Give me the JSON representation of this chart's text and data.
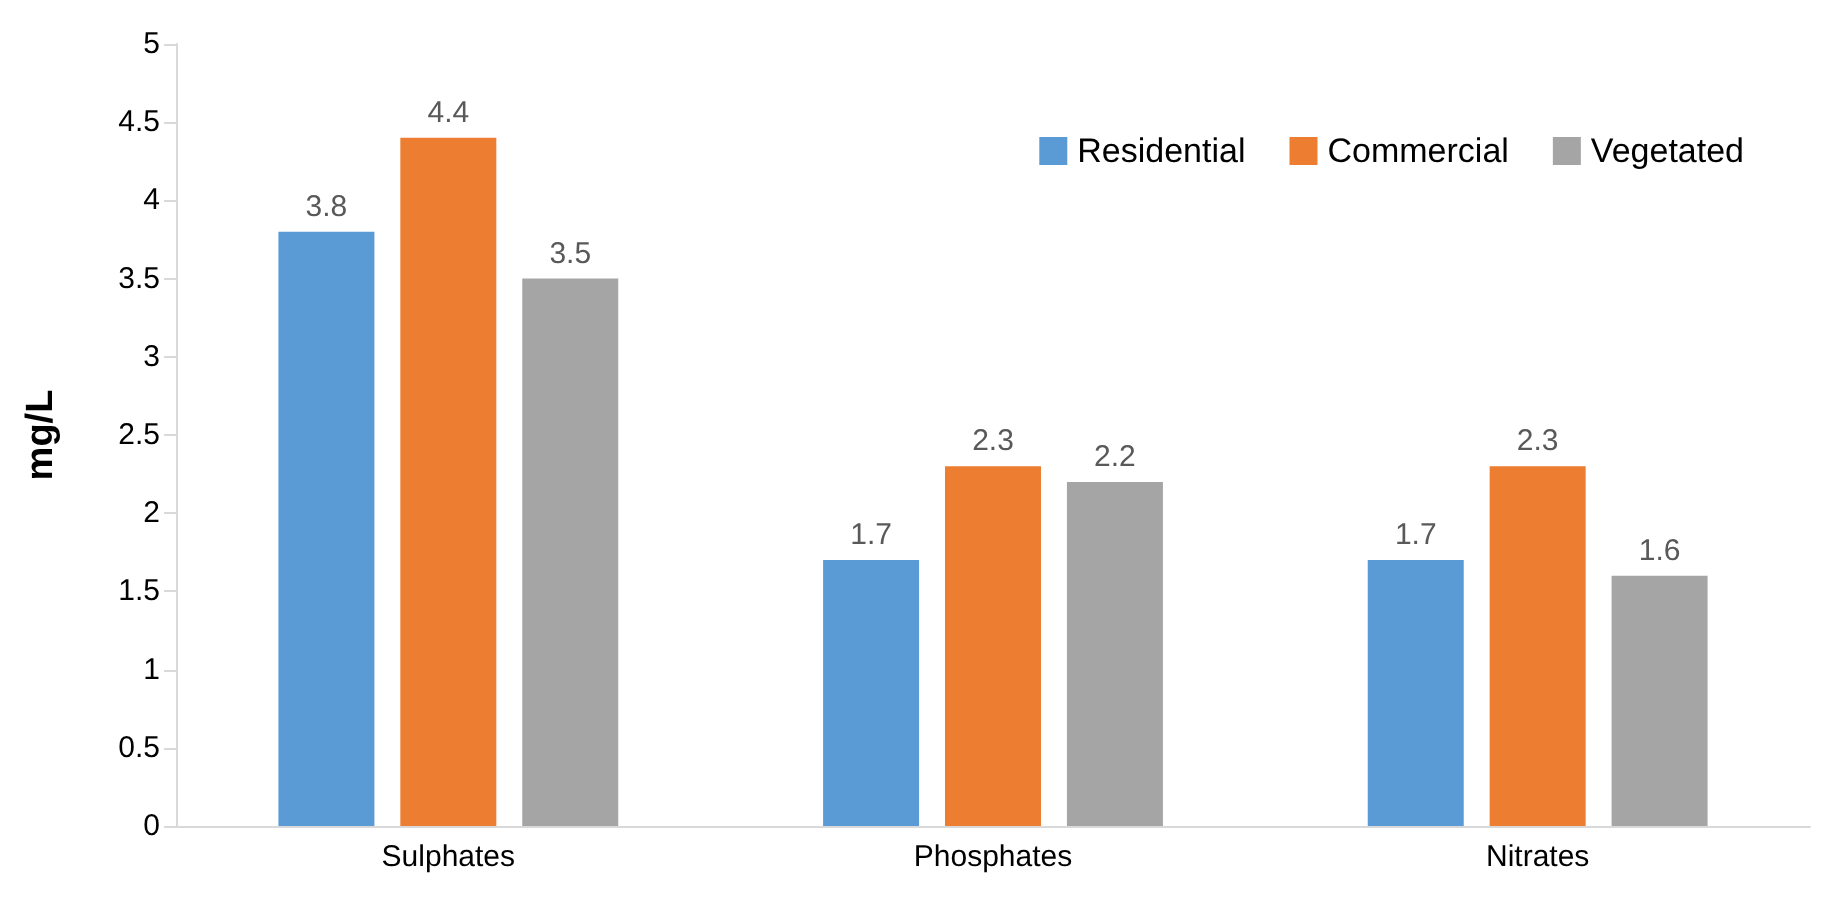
{
  "chart_data": {
    "type": "bar",
    "ylabel": "mg/L",
    "categories": [
      "Sulphates",
      "Phosphates",
      "Nitrates"
    ],
    "series": [
      {
        "name": "Residential",
        "color": "#5b9bd5",
        "values": [
          3.8,
          1.7,
          1.7
        ]
      },
      {
        "name": "Commercial",
        "color": "#ed7d31",
        "values": [
          4.4,
          2.3,
          2.3
        ]
      },
      {
        "name": "Vegetated",
        "color": "#a5a5a5",
        "values": [
          3.5,
          2.2,
          1.6
        ]
      }
    ],
    "ylim": [
      0,
      5
    ],
    "yticks": [
      0,
      0.5,
      1,
      1.5,
      2,
      2.5,
      3,
      3.5,
      4,
      4.5,
      5
    ],
    "grid": false,
    "legend": "top right",
    "data_labels": true
  }
}
